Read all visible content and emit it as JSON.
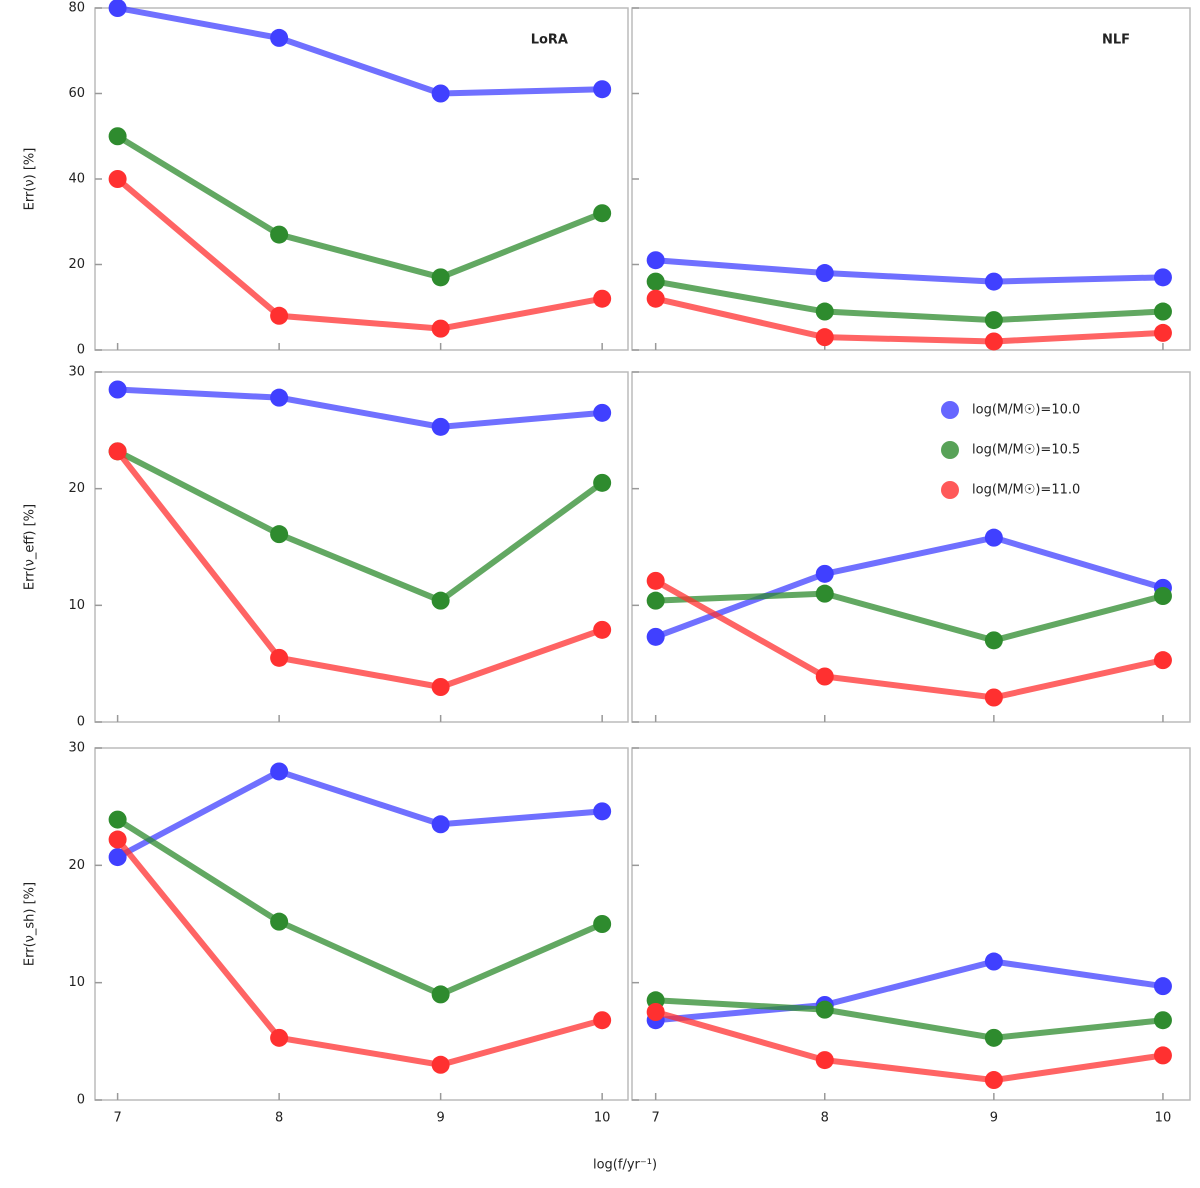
{
  "chart_data": [
    {
      "type": "line",
      "title": "LoRA",
      "ylabel": "Err(ν) [%]",
      "x": [
        7,
        8,
        9,
        10
      ],
      "xlim": [
        6.86,
        10.16
      ],
      "xticks": [
        7,
        8,
        9,
        10
      ],
      "ylim": [
        0,
        80
      ],
      "yticks": [
        0,
        20,
        40,
        60,
        80
      ],
      "series": [
        {
          "color": "#4040ff",
          "values": [
            80,
            73,
            60,
            61
          ]
        },
        {
          "color": "#2e8b2e",
          "values": [
            50,
            27,
            17,
            32
          ]
        },
        {
          "color": "#ff3030",
          "values": [
            40,
            8,
            5,
            12
          ]
        }
      ]
    },
    {
      "type": "line",
      "title": "NLF",
      "x": [
        7,
        8,
        9,
        10
      ],
      "xlim": [
        6.86,
        10.16
      ],
      "xticks": [
        7,
        8,
        9,
        10
      ],
      "ylim": [
        0,
        80
      ],
      "yticks": [
        0,
        20,
        40,
        60,
        80
      ],
      "series": [
        {
          "color": "#4040ff",
          "values": [
            21,
            18,
            16,
            17
          ]
        },
        {
          "color": "#2e8b2e",
          "values": [
            16,
            9,
            7,
            9
          ]
        },
        {
          "color": "#ff3030",
          "values": [
            12,
            3,
            2,
            4
          ]
        }
      ]
    },
    {
      "type": "line",
      "ylabel": "Err(ν_eff) [%]",
      "x": [
        7,
        8,
        9,
        10
      ],
      "xlim": [
        6.86,
        10.16
      ],
      "xticks": [
        7,
        8,
        9,
        10
      ],
      "ylim": [
        0,
        30
      ],
      "yticks": [
        0,
        10,
        20,
        30
      ],
      "series": [
        {
          "color": "#4040ff",
          "values": [
            28.5,
            27.8,
            25.3,
            26.5
          ]
        },
        {
          "color": "#2e8b2e",
          "values": [
            23.2,
            16.1,
            10.4,
            20.5
          ]
        },
        {
          "color": "#ff3030",
          "values": [
            23.2,
            5.5,
            3.0,
            7.9
          ]
        }
      ]
    },
    {
      "type": "line",
      "x": [
        7,
        8,
        9,
        10
      ],
      "xlim": [
        6.86,
        10.16
      ],
      "xticks": [
        7,
        8,
        9,
        10
      ],
      "ylim": [
        0,
        30
      ],
      "yticks": [
        0,
        10,
        20,
        30
      ],
      "legend": "upper right",
      "series": [
        {
          "name": "log(M/M☉)=10.0",
          "color": "#4040ff",
          "values": [
            7.3,
            12.7,
            15.8,
            11.5
          ]
        },
        {
          "name": "log(M/M☉)=10.5",
          "color": "#2e8b2e",
          "values": [
            10.4,
            11.0,
            7.0,
            10.8
          ]
        },
        {
          "name": "log(M/M☉)=11.0",
          "color": "#ff3030",
          "values": [
            12.1,
            3.9,
            2.1,
            5.3
          ]
        }
      ]
    },
    {
      "type": "line",
      "ylabel": "Err(ν_sh) [%]",
      "xlabel": "log(f/yr⁻¹)",
      "x": [
        7,
        8,
        9,
        10
      ],
      "xlim": [
        6.86,
        10.16
      ],
      "xticks": [
        7,
        8,
        9,
        10
      ],
      "ylim": [
        0,
        30
      ],
      "yticks": [
        0,
        10,
        20,
        30
      ],
      "series": [
        {
          "color": "#4040ff",
          "values": [
            20.7,
            28.0,
            23.5,
            24.6
          ]
        },
        {
          "color": "#2e8b2e",
          "values": [
            23.9,
            15.2,
            9.0,
            15.0
          ]
        },
        {
          "color": "#ff3030",
          "values": [
            22.2,
            5.3,
            3.0,
            6.8
          ]
        }
      ]
    },
    {
      "type": "line",
      "x": [
        7,
        8,
        9,
        10
      ],
      "xlim": [
        6.86,
        10.16
      ],
      "xticks": [
        7,
        8,
        9,
        10
      ],
      "ylim": [
        0,
        30
      ],
      "yticks": [
        0,
        10,
        20,
        30
      ],
      "series": [
        {
          "color": "#4040ff",
          "values": [
            6.8,
            8.1,
            11.8,
            9.7
          ]
        },
        {
          "color": "#2e8b2e",
          "values": [
            8.5,
            7.7,
            5.3,
            6.8
          ]
        },
        {
          "color": "#ff3030",
          "values": [
            7.5,
            3.4,
            1.7,
            3.8
          ]
        }
      ]
    }
  ]
}
